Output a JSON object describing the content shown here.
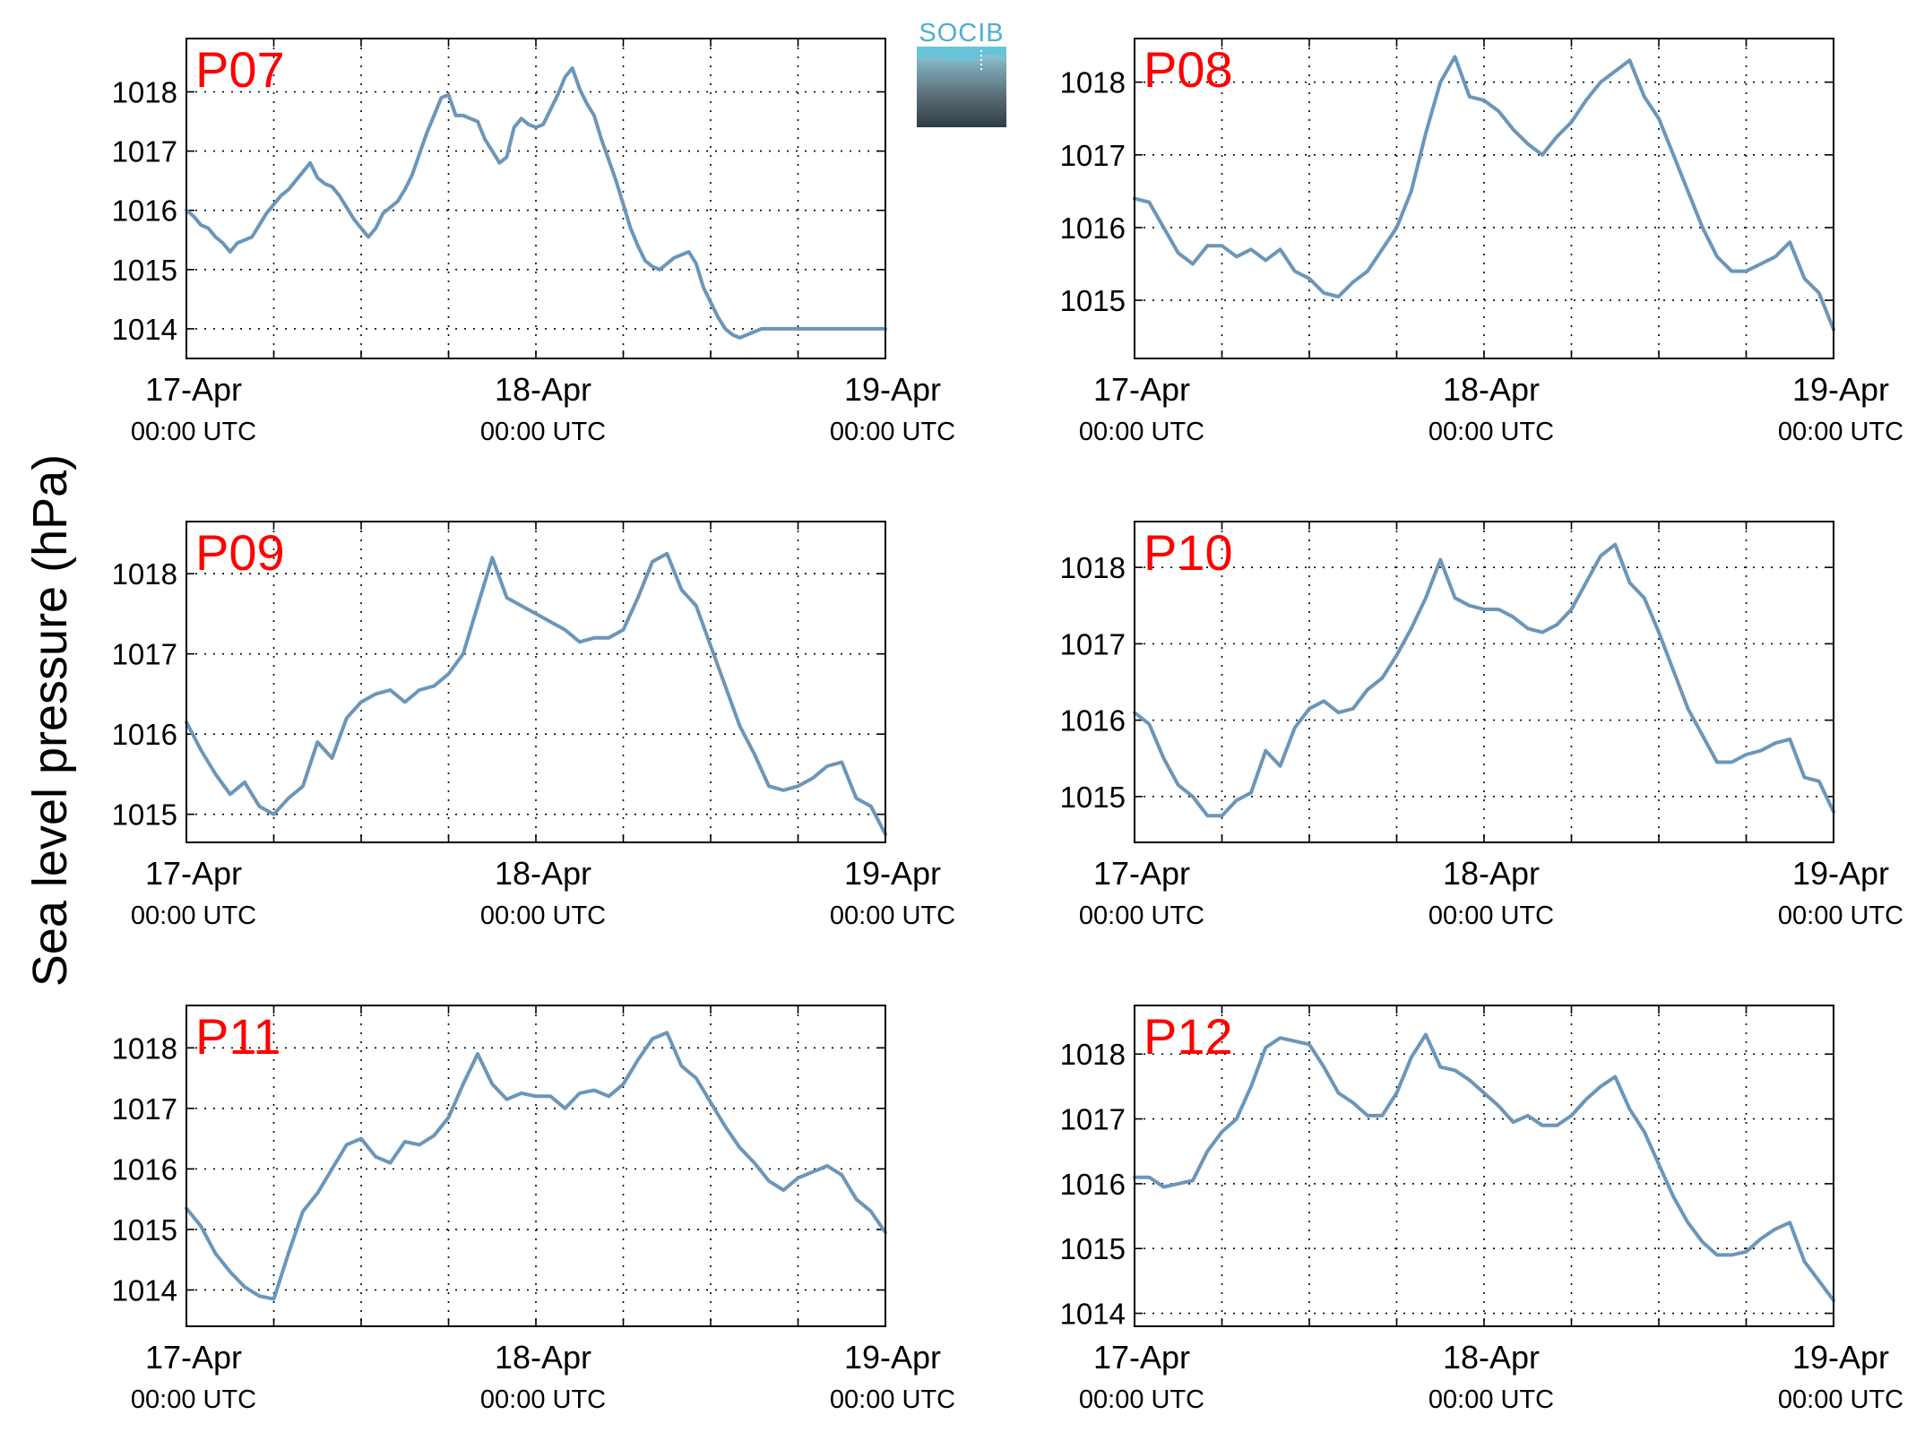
{
  "figure": {
    "ylabel": "Sea level pressure (hPa)",
    "logo_text": "SOCIB"
  },
  "colors": {
    "line": "#6b96b9",
    "panel_label": "#ff0000",
    "axes": "#000000",
    "grid": "#000000"
  },
  "x_ticks": [
    {
      "value": 0,
      "date": "17-Apr",
      "time": "00:00 UTC"
    },
    {
      "value": 24,
      "date": "18-Apr",
      "time": "00:00 UTC"
    },
    {
      "value": 48,
      "date": "19-Apr",
      "time": "00:00 UTC"
    }
  ],
  "chart_data": [
    {
      "type": "line",
      "panel_label": "P07",
      "xlim": [
        0,
        48
      ],
      "ylim": [
        1013.5,
        1018.9
      ],
      "yticks": [
        1014,
        1015,
        1016,
        1017,
        1018
      ],
      "grid": true,
      "series": [
        {
          "x": [
            0,
            0.5,
            1,
            1.5,
            2,
            2.5,
            3,
            3.5,
            4,
            4.5,
            5,
            5.5,
            6,
            6.5,
            7,
            7.5,
            8,
            8.5,
            9,
            9.5,
            10,
            10.5,
            11,
            11.5,
            12,
            12.5,
            13,
            13.5,
            14,
            14.5,
            15,
            15.5,
            16,
            16.5,
            17,
            17.5,
            18,
            18.5,
            19,
            19.5,
            20,
            20.5,
            21,
            21.5,
            22,
            22.5,
            23,
            23.5,
            24,
            24.5,
            25,
            25.5,
            26,
            26.5,
            27,
            27.5,
            28,
            28.5,
            29,
            29.5,
            30,
            30.5,
            31,
            31.5,
            32,
            32.5,
            33,
            33.5,
            34,
            34.5,
            35,
            35.5,
            36,
            36.5,
            37,
            37.5,
            38,
            38.5,
            39,
            39.5,
            40,
            40.5,
            41,
            41.5,
            42,
            42.5,
            43,
            43.5,
            44,
            44.5,
            45,
            45.5,
            46,
            46.5,
            47,
            47.5,
            48
          ],
          "y": [
            1016.0,
            1015.9,
            1015.75,
            1015.7,
            1015.55,
            1015.45,
            1015.3,
            1015.45,
            1015.5,
            1015.55,
            1015.75,
            1015.95,
            1016.1,
            1016.25,
            1016.35,
            1016.5,
            1016.65,
            1016.8,
            1016.55,
            1016.45,
            1016.4,
            1016.25,
            1016.05,
            1015.85,
            1015.7,
            1015.55,
            1015.7,
            1015.95,
            1016.05,
            1016.15,
            1016.35,
            1016.6,
            1016.95,
            1017.3,
            1017.6,
            1017.9,
            1017.95,
            1017.6,
            1017.6,
            1017.55,
            1017.5,
            1017.2,
            1017.0,
            1016.8,
            1016.9,
            1017.4,
            1017.55,
            1017.45,
            1017.4,
            1017.45,
            1017.7,
            1017.95,
            1018.25,
            1018.4,
            1018.05,
            1017.8,
            1017.6,
            1017.2,
            1016.85,
            1016.5,
            1016.1,
            1015.7,
            1015.4,
            1015.15,
            1015.05,
            1015.0,
            1015.1,
            1015.2,
            1015.25,
            1015.3,
            1015.1,
            1014.7,
            1014.45,
            1014.2,
            1014.0,
            1013.9,
            1013.85,
            1013.9,
            1013.95,
            1014.0,
            1014.0,
            1014.0,
            1014.0,
            1014.0,
            1014.0,
            1014.0,
            1014.0,
            1014.0,
            1014.0,
            1014.0,
            1014.0,
            1014.0,
            1014.0,
            1014.0,
            1014.0,
            1014.0,
            1014.0
          ]
        }
      ],
      "xrange_shown": [
        0,
        48
      ]
    },
    {
      "type": "line",
      "panel_label": "P08",
      "xlim": [
        0,
        48
      ],
      "ylim": [
        1014.2,
        1018.6
      ],
      "yticks": [
        1015,
        1016,
        1017,
        1018
      ],
      "grid": true,
      "series": [
        {
          "x": [
            0,
            1,
            2,
            3,
            4,
            5,
            6,
            7,
            8,
            9,
            10,
            11,
            12,
            13,
            14,
            15,
            16,
            17,
            18,
            19,
            20,
            21,
            22,
            23,
            24,
            25,
            26,
            27,
            28,
            29,
            30,
            31,
            32,
            33,
            34,
            35,
            36,
            37,
            38,
            39,
            40,
            41,
            42,
            43,
            44,
            45,
            46,
            47,
            48
          ],
          "y": [
            1016.4,
            1016.35,
            1016.0,
            1015.65,
            1015.5,
            1015.75,
            1015.75,
            1015.6,
            1015.7,
            1015.55,
            1015.7,
            1015.4,
            1015.3,
            1015.1,
            1015.05,
            1015.25,
            1015.4,
            1015.7,
            1016.0,
            1016.5,
            1017.3,
            1018.0,
            1018.35,
            1017.8,
            1017.75,
            1017.6,
            1017.35,
            1017.15,
            1017.0,
            1017.25,
            1017.45,
            1017.75,
            1018.0,
            1018.15,
            1018.3,
            1017.8,
            1017.5,
            1017.0,
            1016.5,
            1016.0,
            1015.6,
            1015.4,
            1015.4,
            1015.5,
            1015.6,
            1015.8,
            1015.3,
            1015.1,
            1014.6
          ]
        }
      ]
    },
    {
      "type": "line",
      "panel_label": "P09",
      "xlim": [
        0,
        48
      ],
      "ylim": [
        1014.65,
        1018.65
      ],
      "yticks": [
        1015,
        1016,
        1017,
        1018
      ],
      "grid": true,
      "series": [
        {
          "x": [
            0,
            1,
            2,
            3,
            4,
            5,
            6,
            7,
            8,
            9,
            10,
            11,
            12,
            13,
            14,
            15,
            16,
            17,
            18,
            19,
            20,
            21,
            22,
            23,
            24,
            25,
            26,
            27,
            28,
            29,
            30,
            31,
            32,
            33,
            34,
            35,
            36,
            37,
            38,
            39,
            40,
            41,
            42,
            43,
            44,
            45,
            46,
            47,
            48
          ],
          "y": [
            1016.15,
            1015.8,
            1015.5,
            1015.25,
            1015.4,
            1015.1,
            1015.0,
            1015.2,
            1015.35,
            1015.9,
            1015.7,
            1016.2,
            1016.4,
            1016.5,
            1016.55,
            1016.4,
            1016.55,
            1016.6,
            1016.75,
            1017.0,
            1017.6,
            1018.2,
            1017.7,
            1017.6,
            1017.5,
            1017.4,
            1017.3,
            1017.15,
            1017.2,
            1017.2,
            1017.3,
            1017.7,
            1018.15,
            1018.25,
            1017.8,
            1017.6,
            1017.1,
            1016.6,
            1016.1,
            1015.75,
            1015.35,
            1015.3,
            1015.35,
            1015.45,
            1015.6,
            1015.65,
            1015.2,
            1015.1,
            1014.75
          ]
        }
      ]
    },
    {
      "type": "line",
      "panel_label": "P10",
      "xlim": [
        0,
        48
      ],
      "ylim": [
        1014.4,
        1018.6
      ],
      "yticks": [
        1015,
        1016,
        1017,
        1018
      ],
      "grid": true,
      "series": [
        {
          "x": [
            0,
            1,
            2,
            3,
            4,
            5,
            6,
            7,
            8,
            9,
            10,
            11,
            12,
            13,
            14,
            15,
            16,
            17,
            18,
            19,
            20,
            21,
            22,
            23,
            24,
            25,
            26,
            27,
            28,
            29,
            30,
            31,
            32,
            33,
            34,
            35,
            36,
            37,
            38,
            39,
            40,
            41,
            42,
            43,
            44,
            45,
            46,
            47,
            48
          ],
          "y": [
            1016.1,
            1015.95,
            1015.5,
            1015.15,
            1015.0,
            1014.75,
            1014.75,
            1014.95,
            1015.05,
            1015.6,
            1015.4,
            1015.9,
            1016.15,
            1016.25,
            1016.1,
            1016.15,
            1016.4,
            1016.55,
            1016.85,
            1017.2,
            1017.6,
            1018.1,
            1017.6,
            1017.5,
            1017.45,
            1017.45,
            1017.35,
            1017.2,
            1017.15,
            1017.25,
            1017.45,
            1017.8,
            1018.15,
            1018.3,
            1017.8,
            1017.6,
            1017.15,
            1016.65,
            1016.15,
            1015.8,
            1015.45,
            1015.45,
            1015.55,
            1015.6,
            1015.7,
            1015.75,
            1015.25,
            1015.2,
            1014.8
          ]
        }
      ]
    },
    {
      "type": "line",
      "panel_label": "P11",
      "xlim": [
        0,
        48
      ],
      "ylim": [
        1013.4,
        1018.7
      ],
      "yticks": [
        1014,
        1015,
        1016,
        1017,
        1018
      ],
      "grid": true,
      "series": [
        {
          "x": [
            0,
            1,
            2,
            3,
            4,
            5,
            6,
            7,
            8,
            9,
            10,
            11,
            12,
            13,
            14,
            15,
            16,
            17,
            18,
            19,
            20,
            21,
            22,
            23,
            24,
            25,
            26,
            27,
            28,
            29,
            30,
            31,
            32,
            33,
            34,
            35,
            36,
            37,
            38,
            39,
            40,
            41,
            42,
            43,
            44,
            45,
            46,
            47,
            48
          ],
          "y": [
            1015.35,
            1015.05,
            1014.6,
            1014.3,
            1014.05,
            1013.9,
            1013.85,
            1014.6,
            1015.3,
            1015.6,
            1016.0,
            1016.4,
            1016.5,
            1016.2,
            1016.1,
            1016.45,
            1016.4,
            1016.55,
            1016.85,
            1017.4,
            1017.9,
            1017.4,
            1017.15,
            1017.25,
            1017.2,
            1017.2,
            1017.0,
            1017.25,
            1017.3,
            1017.2,
            1017.4,
            1017.8,
            1018.15,
            1018.25,
            1017.7,
            1017.5,
            1017.1,
            1016.7,
            1016.35,
            1016.1,
            1015.8,
            1015.65,
            1015.85,
            1015.95,
            1016.05,
            1015.9,
            1015.5,
            1015.3,
            1014.95
          ]
        }
      ]
    },
    {
      "type": "line",
      "panel_label": "P12",
      "xlim": [
        0,
        48
      ],
      "ylim": [
        1013.8,
        1018.75
      ],
      "yticks": [
        1014,
        1015,
        1016,
        1017,
        1018
      ],
      "grid": true,
      "series": [
        {
          "x": [
            0,
            1,
            2,
            3,
            4,
            5,
            6,
            7,
            8,
            9,
            10,
            11,
            12,
            13,
            14,
            15,
            16,
            17,
            18,
            19,
            20,
            21,
            22,
            23,
            24,
            25,
            26,
            27,
            28,
            29,
            30,
            31,
            32,
            33,
            34,
            35,
            36,
            37,
            38,
            39,
            40,
            41,
            42,
            43,
            44,
            45,
            46,
            47,
            48
          ],
          "y": [
            1016.1,
            1016.1,
            1015.95,
            1016.0,
            1016.05,
            1016.5,
            1016.8,
            1017.0,
            1017.5,
            1018.1,
            1018.25,
            1018.2,
            1018.15,
            1017.8,
            1017.4,
            1017.25,
            1017.05,
            1017.05,
            1017.4,
            1017.95,
            1018.3,
            1017.8,
            1017.75,
            1017.6,
            1017.4,
            1017.2,
            1016.95,
            1017.05,
            1016.9,
            1016.9,
            1017.05,
            1017.3,
            1017.5,
            1017.65,
            1017.15,
            1016.8,
            1016.3,
            1015.8,
            1015.4,
            1015.1,
            1014.9,
            1014.9,
            1014.95,
            1015.15,
            1015.3,
            1015.4,
            1014.8,
            1014.5,
            1014.2
          ]
        }
      ]
    }
  ]
}
